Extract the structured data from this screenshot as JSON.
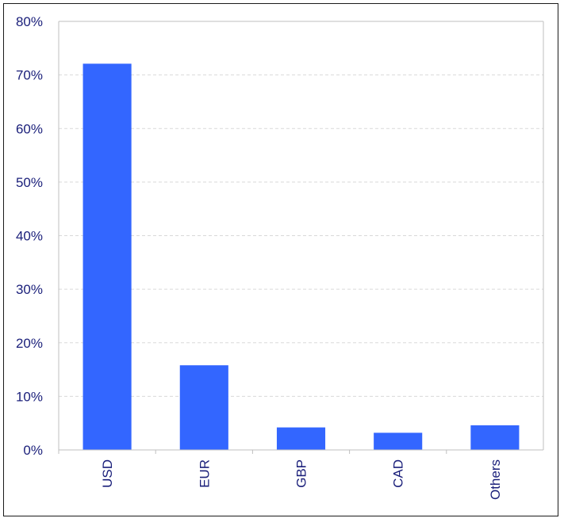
{
  "chart_data": {
    "type": "bar",
    "categories": [
      "USD",
      "EUR",
      "GBP",
      "CAD",
      "Others"
    ],
    "values": [
      72.1,
      15.8,
      4.2,
      3.2,
      4.6
    ],
    "value_unit": "%",
    "title": "",
    "xlabel": "",
    "ylabel": "",
    "ylim": [
      0,
      80
    ],
    "y_ticks": [
      "0%",
      "10%",
      "20%",
      "30%",
      "40%",
      "50%",
      "60%",
      "70%",
      "80%"
    ],
    "grid": "horizontal-dashed",
    "legend": "none",
    "colors": {
      "bar": "#3366ff",
      "text": "#1a1f7a",
      "grid": "#d9d9d9",
      "axis": "#bfbfbf",
      "frame": "#1a1a1a"
    }
  }
}
